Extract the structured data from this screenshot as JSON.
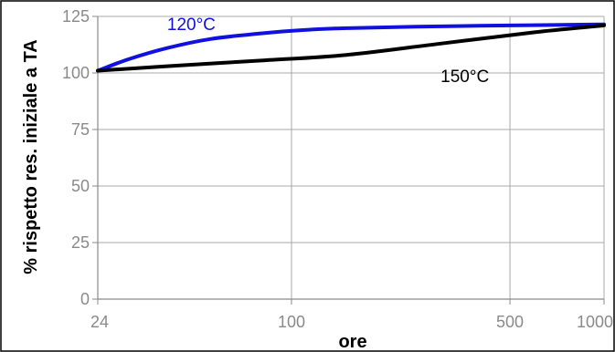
{
  "chart_data": {
    "type": "line",
    "xlabel": "ore",
    "ylabel": "% rispetto res. iniziale a TA",
    "x_scale": "log",
    "xlim": [
      24,
      1000
    ],
    "ylim": [
      0,
      125
    ],
    "x_ticks": [
      24,
      100,
      500,
      1000
    ],
    "y_ticks": [
      0,
      25,
      50,
      75,
      100,
      125
    ],
    "grid": true,
    "series": [
      {
        "name": "120°C",
        "color": "#1010e0",
        "x": [
          24,
          30,
          40,
          55,
          80,
          110,
          150,
          250,
          500,
          1000
        ],
        "y": [
          101,
          106,
          111,
          115,
          117.5,
          119,
          119.8,
          120.5,
          121,
          121.5
        ]
      },
      {
        "name": "150°C",
        "color": "#000000",
        "x": [
          24,
          40,
          80,
          150,
          300,
          600,
          1000
        ],
        "y": [
          101,
          103,
          105.5,
          108,
          113,
          118,
          121
        ]
      }
    ]
  }
}
